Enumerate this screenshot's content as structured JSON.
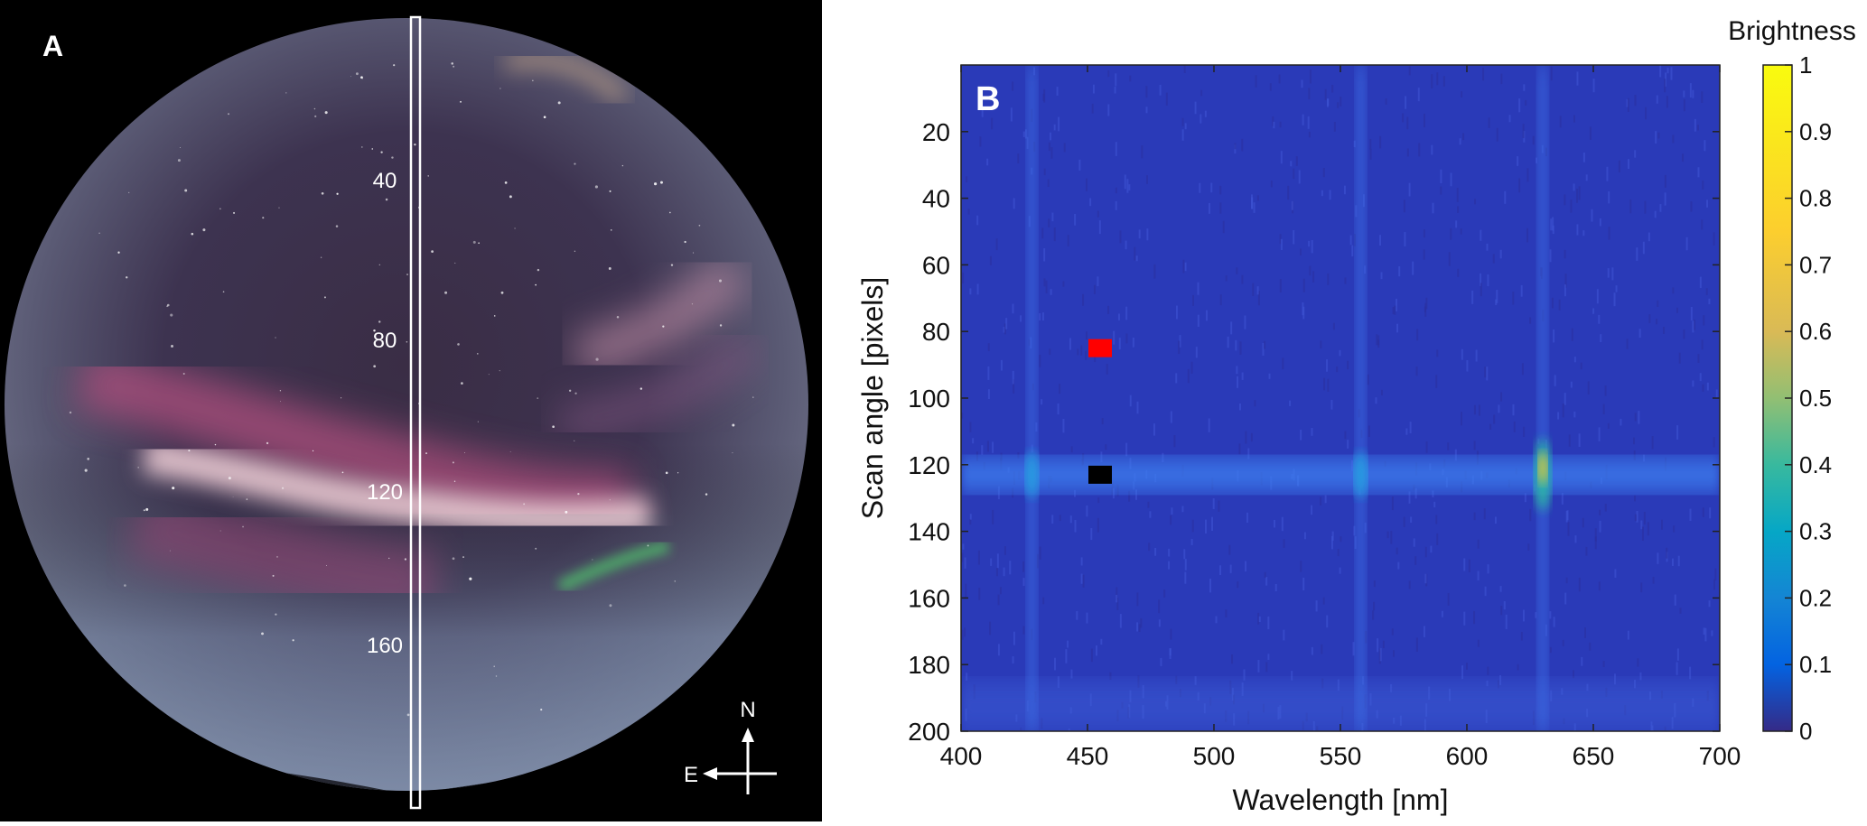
{
  "panel_a": {
    "label": "A",
    "scan_ticks": [
      "40",
      "80",
      "120",
      "160"
    ],
    "compass": {
      "north": "N",
      "east": "E"
    }
  },
  "chart_data": {
    "type": "heatmap",
    "panel_label": "B",
    "xlabel": "Wavelength [nm]",
    "ylabel": "Scan angle [pixels]",
    "xlim": [
      400,
      700
    ],
    "ylim": [
      0,
      200
    ],
    "y_reversed": true,
    "xticks": [
      400,
      450,
      500,
      550,
      600,
      650,
      700
    ],
    "yticks": [
      20,
      40,
      60,
      80,
      100,
      120,
      140,
      160,
      180,
      200
    ],
    "colorbar": {
      "title": "Brightness",
      "range": [
        0,
        1
      ],
      "ticks": [
        "0",
        "0.1",
        "0.2",
        "0.3",
        "0.4",
        "0.5",
        "0.6",
        "0.7",
        "0.8",
        "0.9",
        "1"
      ]
    },
    "emission_lines_nm": [
      428,
      558,
      630
    ],
    "bright_row": 123,
    "markers": [
      {
        "color": "#ff0000",
        "x": 455,
        "y": 85
      },
      {
        "color": "#000000",
        "x": 455,
        "y": 123
      }
    ],
    "grid": false
  }
}
